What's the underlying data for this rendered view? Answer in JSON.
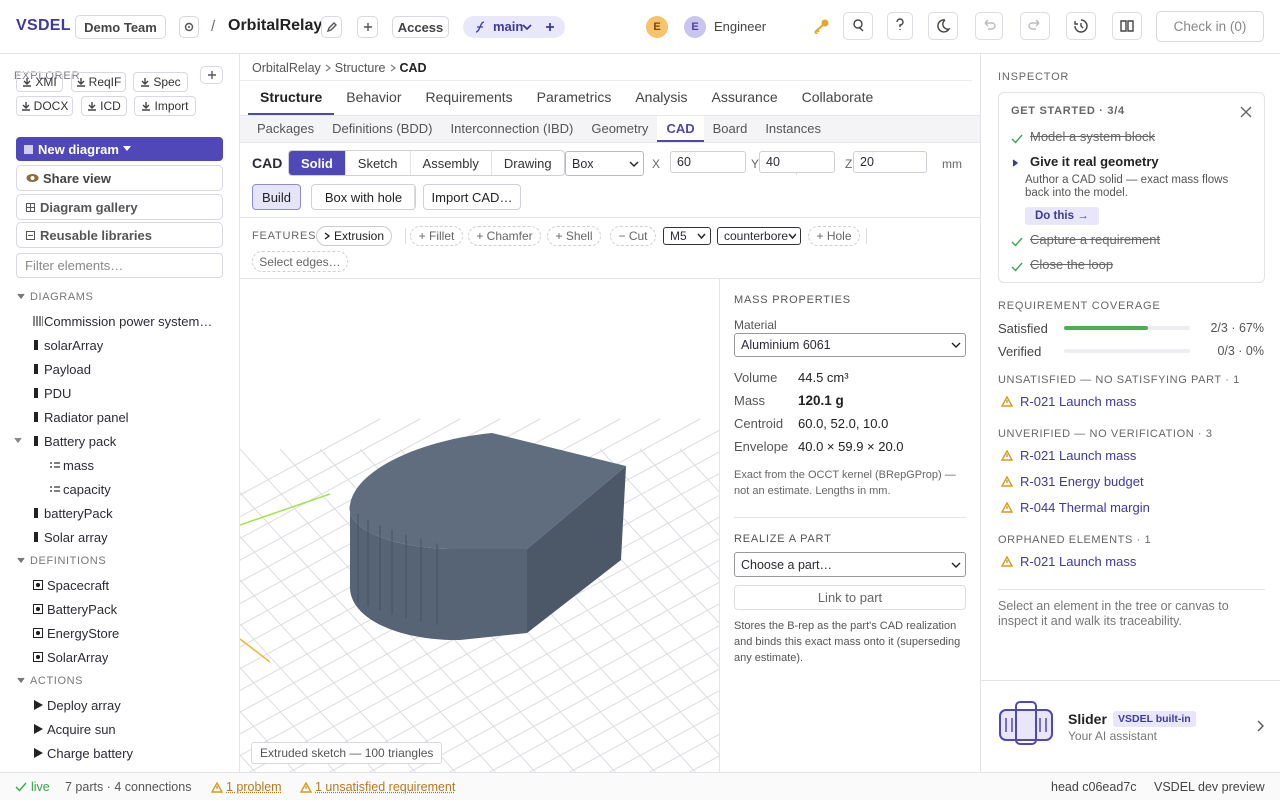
{
  "header": {
    "brand": "VSDEL",
    "team": "Demo Team",
    "separator": "/",
    "project": "OrbitalRelay",
    "access": "Access",
    "branch": "main",
    "avatars": [
      "E",
      "E"
    ],
    "role": "Engineer",
    "check_in": "Check in (0)"
  },
  "explorer": {
    "title": "EXPLORER",
    "imports": [
      "XMI",
      "ReqIF",
      "Spec",
      "DOCX",
      "ICD",
      "Import"
    ],
    "new_diagram": "New diagram",
    "share_view": "Share view",
    "gallery": "Diagram gallery",
    "libraries": "Reusable libraries",
    "filter": "Filter elements…",
    "sections": [
      {
        "title": "DIAGRAMS",
        "items": [
          {
            "label": "Commission power system…"
          },
          {
            "label": "solarArray"
          },
          {
            "label": "Payload"
          },
          {
            "label": "PDU"
          },
          {
            "label": "Radiator panel"
          },
          {
            "label": "Battery pack",
            "children": [
              "mass",
              "capacity"
            ]
          },
          {
            "label": "batteryPack"
          },
          {
            "label": "Solar array"
          }
        ]
      },
      {
        "title": "DEFINITIONS",
        "items": [
          {
            "label": "Spacecraft"
          },
          {
            "label": "BatteryPack"
          },
          {
            "label": "EnergyStore"
          },
          {
            "label": "SolarArray"
          }
        ]
      },
      {
        "title": "ACTIONS",
        "items": [
          {
            "label": "Deploy array"
          },
          {
            "label": "Acquire sun"
          },
          {
            "label": "Charge battery"
          }
        ]
      }
    ]
  },
  "workspace": {
    "breadcrumb": [
      "OrbitalRelay",
      "Structure",
      "CAD"
    ],
    "tabs": [
      "Structure",
      "Behavior",
      "Requirements",
      "Parametrics",
      "Analysis",
      "Assurance",
      "Collaborate"
    ],
    "active_tab": 0,
    "subtabs": [
      "Packages",
      "Definitions (BDD)",
      "Interconnection (IBD)",
      "Geometry",
      "CAD",
      "Board",
      "Instances"
    ],
    "active_subtab": 4
  },
  "cad": {
    "label": "CAD",
    "modes": [
      "Solid",
      "Sketch",
      "Assembly",
      "Drawing"
    ],
    "active_mode": 0,
    "shape": "Box",
    "dims": [
      {
        "axis": "X",
        "value": 60
      },
      {
        "axis": "Y",
        "value": 40
      },
      {
        "axis": "Z",
        "value": 20
      }
    ],
    "unit": "mm",
    "actions": [
      "Build",
      "Box with hole",
      "Import CAD…"
    ]
  },
  "features": {
    "title": "FEATURES",
    "items": [
      "Extrusion",
      "+ Fillet",
      "+ Chamfer",
      "+ Shell",
      "− Cut"
    ],
    "thread": "M5",
    "hole_type": "counterbore",
    "hole": "+ Hole",
    "select_edges": "Select edges…"
  },
  "viewport": {
    "caption": "Extruded sketch — 100 triangles"
  },
  "mass": {
    "title": "MASS PROPERTIES",
    "material_label": "Material",
    "material": "Aluminium 6061",
    "rows": [
      {
        "label": "Volume",
        "value": "44.5 cm³"
      },
      {
        "label": "Mass",
        "value": "120.1 g"
      },
      {
        "label": "Centroid",
        "value": "60.0, 52.0, 10.0"
      },
      {
        "label": "Envelope",
        "value": "40.0 × 59.9 × 20.0"
      }
    ],
    "note": "Exact from the OCCT kernel (BRepGProp) — not an estimate. Lengths in mm.",
    "realize_title": "REALIZE A PART",
    "part_select": "Choose a part…",
    "link": "Link to part",
    "realize_note": "Stores the B-rep as the part's CAD realization and binds this exact mass onto it (superseding any estimate)."
  },
  "inspector": {
    "title": "INSPECTOR",
    "get_started": {
      "title": "GET STARTED · 3/4",
      "steps": [
        {
          "label": "Model a system block",
          "done": true
        },
        {
          "label": "Give it real geometry",
          "done": false,
          "detail": "Author a CAD solid — exact mass flows back into the model.",
          "action": "Do this →"
        },
        {
          "label": "Capture a requirement",
          "done": true
        },
        {
          "label": "Close the loop",
          "done": true
        }
      ]
    },
    "coverage": {
      "title": "REQUIREMENT COVERAGE",
      "rows": [
        {
          "label": "Satisfied",
          "value": 67,
          "value_label": "2/3 · 67%"
        },
        {
          "label": "Verified",
          "value": 0,
          "value_label": "0/3 · 0%"
        }
      ]
    },
    "issues": [
      {
        "title": "UNSATISFIED — NO SATISFYING PART · 1",
        "items": [
          "R-021 Launch mass"
        ]
      },
      {
        "title": "UNVERIFIED — NO VERIFICATION · 3",
        "items": [
          "R-021 Launch mass",
          "R-031 Energy budget",
          "R-044 Thermal margin"
        ]
      },
      {
        "title": "ORPHANED ELEMENTS · 1",
        "items": [
          "R-021 Launch mass"
        ]
      }
    ],
    "hint": "Select an element in the tree or canvas to inspect it and walk its traceability.",
    "assistant": {
      "name": "Slider",
      "badge": "VSDEL built-in",
      "tagline": "Your AI assistant"
    }
  },
  "status": {
    "live": "live",
    "summary": "7 parts · 4 connections",
    "problems": "1 problem",
    "unsatisfied": "1 unsatisfied requirement",
    "head": "head c06ead7c",
    "build": "VSDEL dev preview"
  }
}
